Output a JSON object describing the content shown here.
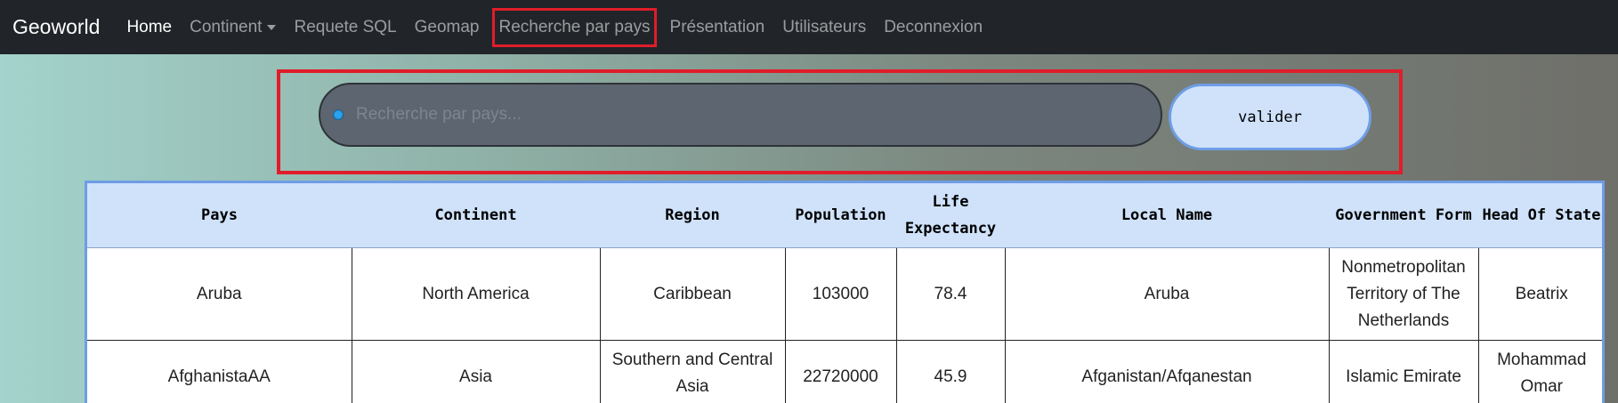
{
  "navbar": {
    "brand": "Geoworld",
    "items": [
      {
        "label": "Home",
        "active": true
      },
      {
        "label": "Continent",
        "dropdown": true
      },
      {
        "label": "Requete SQL"
      },
      {
        "label": "Geomap"
      },
      {
        "label": "Recherche par pays",
        "highlighted": true
      },
      {
        "label": "Présentation"
      },
      {
        "label": "Utilisateurs"
      },
      {
        "label": "Deconnexion"
      }
    ]
  },
  "search": {
    "placeholder": "Recherche par pays...",
    "button_label": "valider"
  },
  "table": {
    "headers": [
      "Pays",
      "Continent",
      "Region",
      "Population",
      "Life Expectancy",
      "Local Name",
      "Government Form",
      "Head Of State"
    ],
    "rows": [
      [
        "Aruba",
        "North America",
        "Caribbean",
        "103000",
        "78.4",
        "Aruba",
        "Nonmetropolitan Territory of The Netherlands",
        "Beatrix"
      ],
      [
        "AfghanistaAA",
        "Asia",
        "Southern and Central Asia",
        "22720000",
        "45.9",
        "Afganistan/Afqanestan",
        "Islamic Emirate",
        "Mohammad Omar"
      ]
    ]
  },
  "colors": {
    "navbar_bg": "#212529",
    "highlight_red": "#e01d2a",
    "header_bg": "#cfe2fa",
    "button_border": "#6f9de6"
  }
}
